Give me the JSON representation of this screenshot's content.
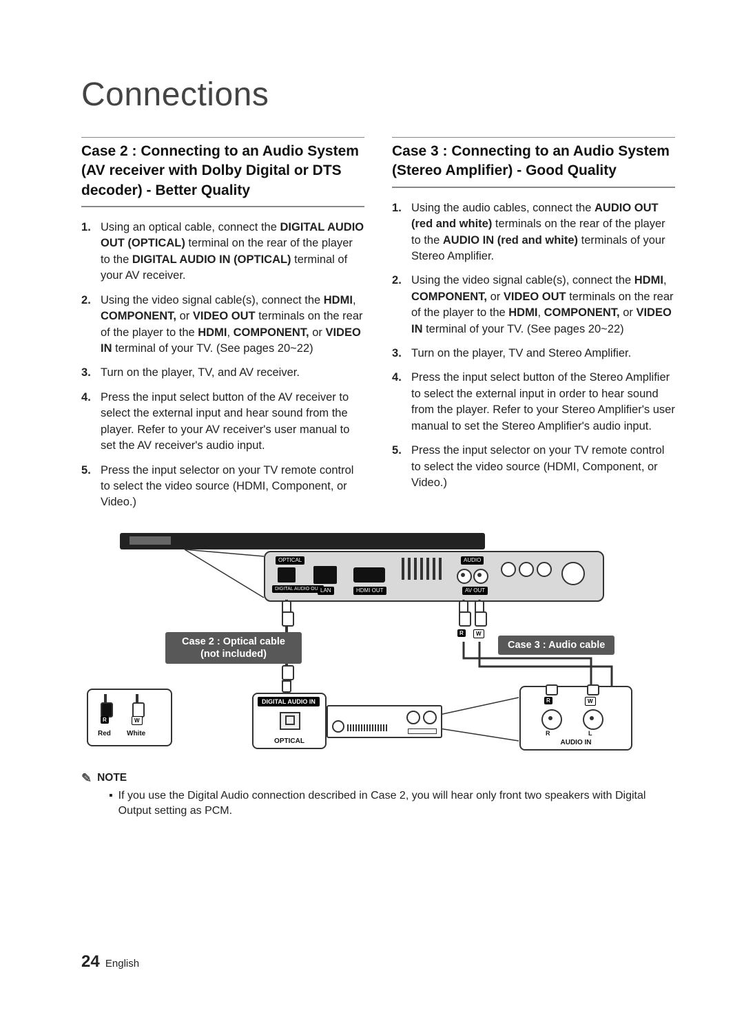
{
  "page": {
    "chapter_title": "Connections",
    "page_number": "24",
    "language_label": "English"
  },
  "case2": {
    "heading": "Case 2 : Connecting to an Audio System (AV receiver with Dolby Digital or DTS decoder) - Better Quality",
    "steps": [
      "Using an optical cable, connect the <b>DIGITAL AUDIO OUT (OPTICAL)</b> terminal on the rear of the player to the <b>DIGITAL AUDIO IN (OPTICAL)</b> terminal of your AV receiver.",
      "Using the video signal cable(s), connect the <b>HDMI</b>, <b>COMPONENT,</b> or <b>VIDEO OUT</b> terminals on the rear of the player to the <b>HDMI</b>, <b>COMPONENT,</b> or <b>VIDEO IN</b> terminal of your TV. (See pages 20~22)",
      "Turn on the player, TV, and AV receiver.",
      "Press the input select button of the AV receiver to select the external input and hear sound from the player. Refer to your AV receiver's user manual to set the AV receiver's audio input.",
      "Press the input selector on your TV remote control to select the video source (HDMI, Component, or Video.)"
    ]
  },
  "case3": {
    "heading": "Case 3 : Connecting to an Audio System (Stereo Amplifier) - Good Quality",
    "steps": [
      "Using the audio cables, connect the <b>AUDIO OUT (red and white)</b> terminals on the rear of the player to the <b>AUDIO IN (red and white)</b> terminals of your Stereo Amplifier.",
      "Using the video signal cable(s), connect the <b>HDMI</b>, <b>COMPONENT,</b> or <b>VIDEO OUT</b> terminals on the rear of the player to the <b>HDMI</b>, <b>COMPONENT,</b> or <b>VIDEO IN</b> terminal of your TV. (See pages 20~22)",
      "Turn on the player, TV and Stereo Amplifier.",
      "Press the input select button of the Stereo Amplifier to select the external input in order to hear sound from the player. Refer to your Stereo Amplifier's user manual to set the Stereo Amplifier's audio input.",
      "Press the input selector on your TV remote control to select the video source (HDMI, Component, or Video.)"
    ]
  },
  "diagram": {
    "case2_label": "Case 2 : Optical cable\n(not included)",
    "case3_label": "Case 3 : Audio cable",
    "red_label": "Red",
    "white_label": "White",
    "optical_port": "OPTICAL",
    "digital_audio_out": "DIGITAL\nAUDIO OUT",
    "lan_port": "LAN",
    "hdmi_out": "HDMI OUT",
    "audio_port": "AUDIO",
    "av_out": "AV OUT",
    "digital_audio_in": "DIGITAL AUDIO IN",
    "optical_label": "OPTICAL",
    "audio_in": "AUDIO IN",
    "r_label": "R",
    "w_label": "W",
    "r_circ": "R",
    "l_circ": "L"
  },
  "note": {
    "heading": "NOTE",
    "items": [
      "If you use the Digital Audio connection described in Case 2, you will hear only front two speakers with Digital Output setting as PCM."
    ]
  },
  "colors": {
    "text": "#222222",
    "heading": "#111111",
    "rule": "#888888",
    "pill_bg": "#585858",
    "diagram_bg": "#d9d9d9",
    "black": "#000000",
    "white": "#ffffff"
  }
}
